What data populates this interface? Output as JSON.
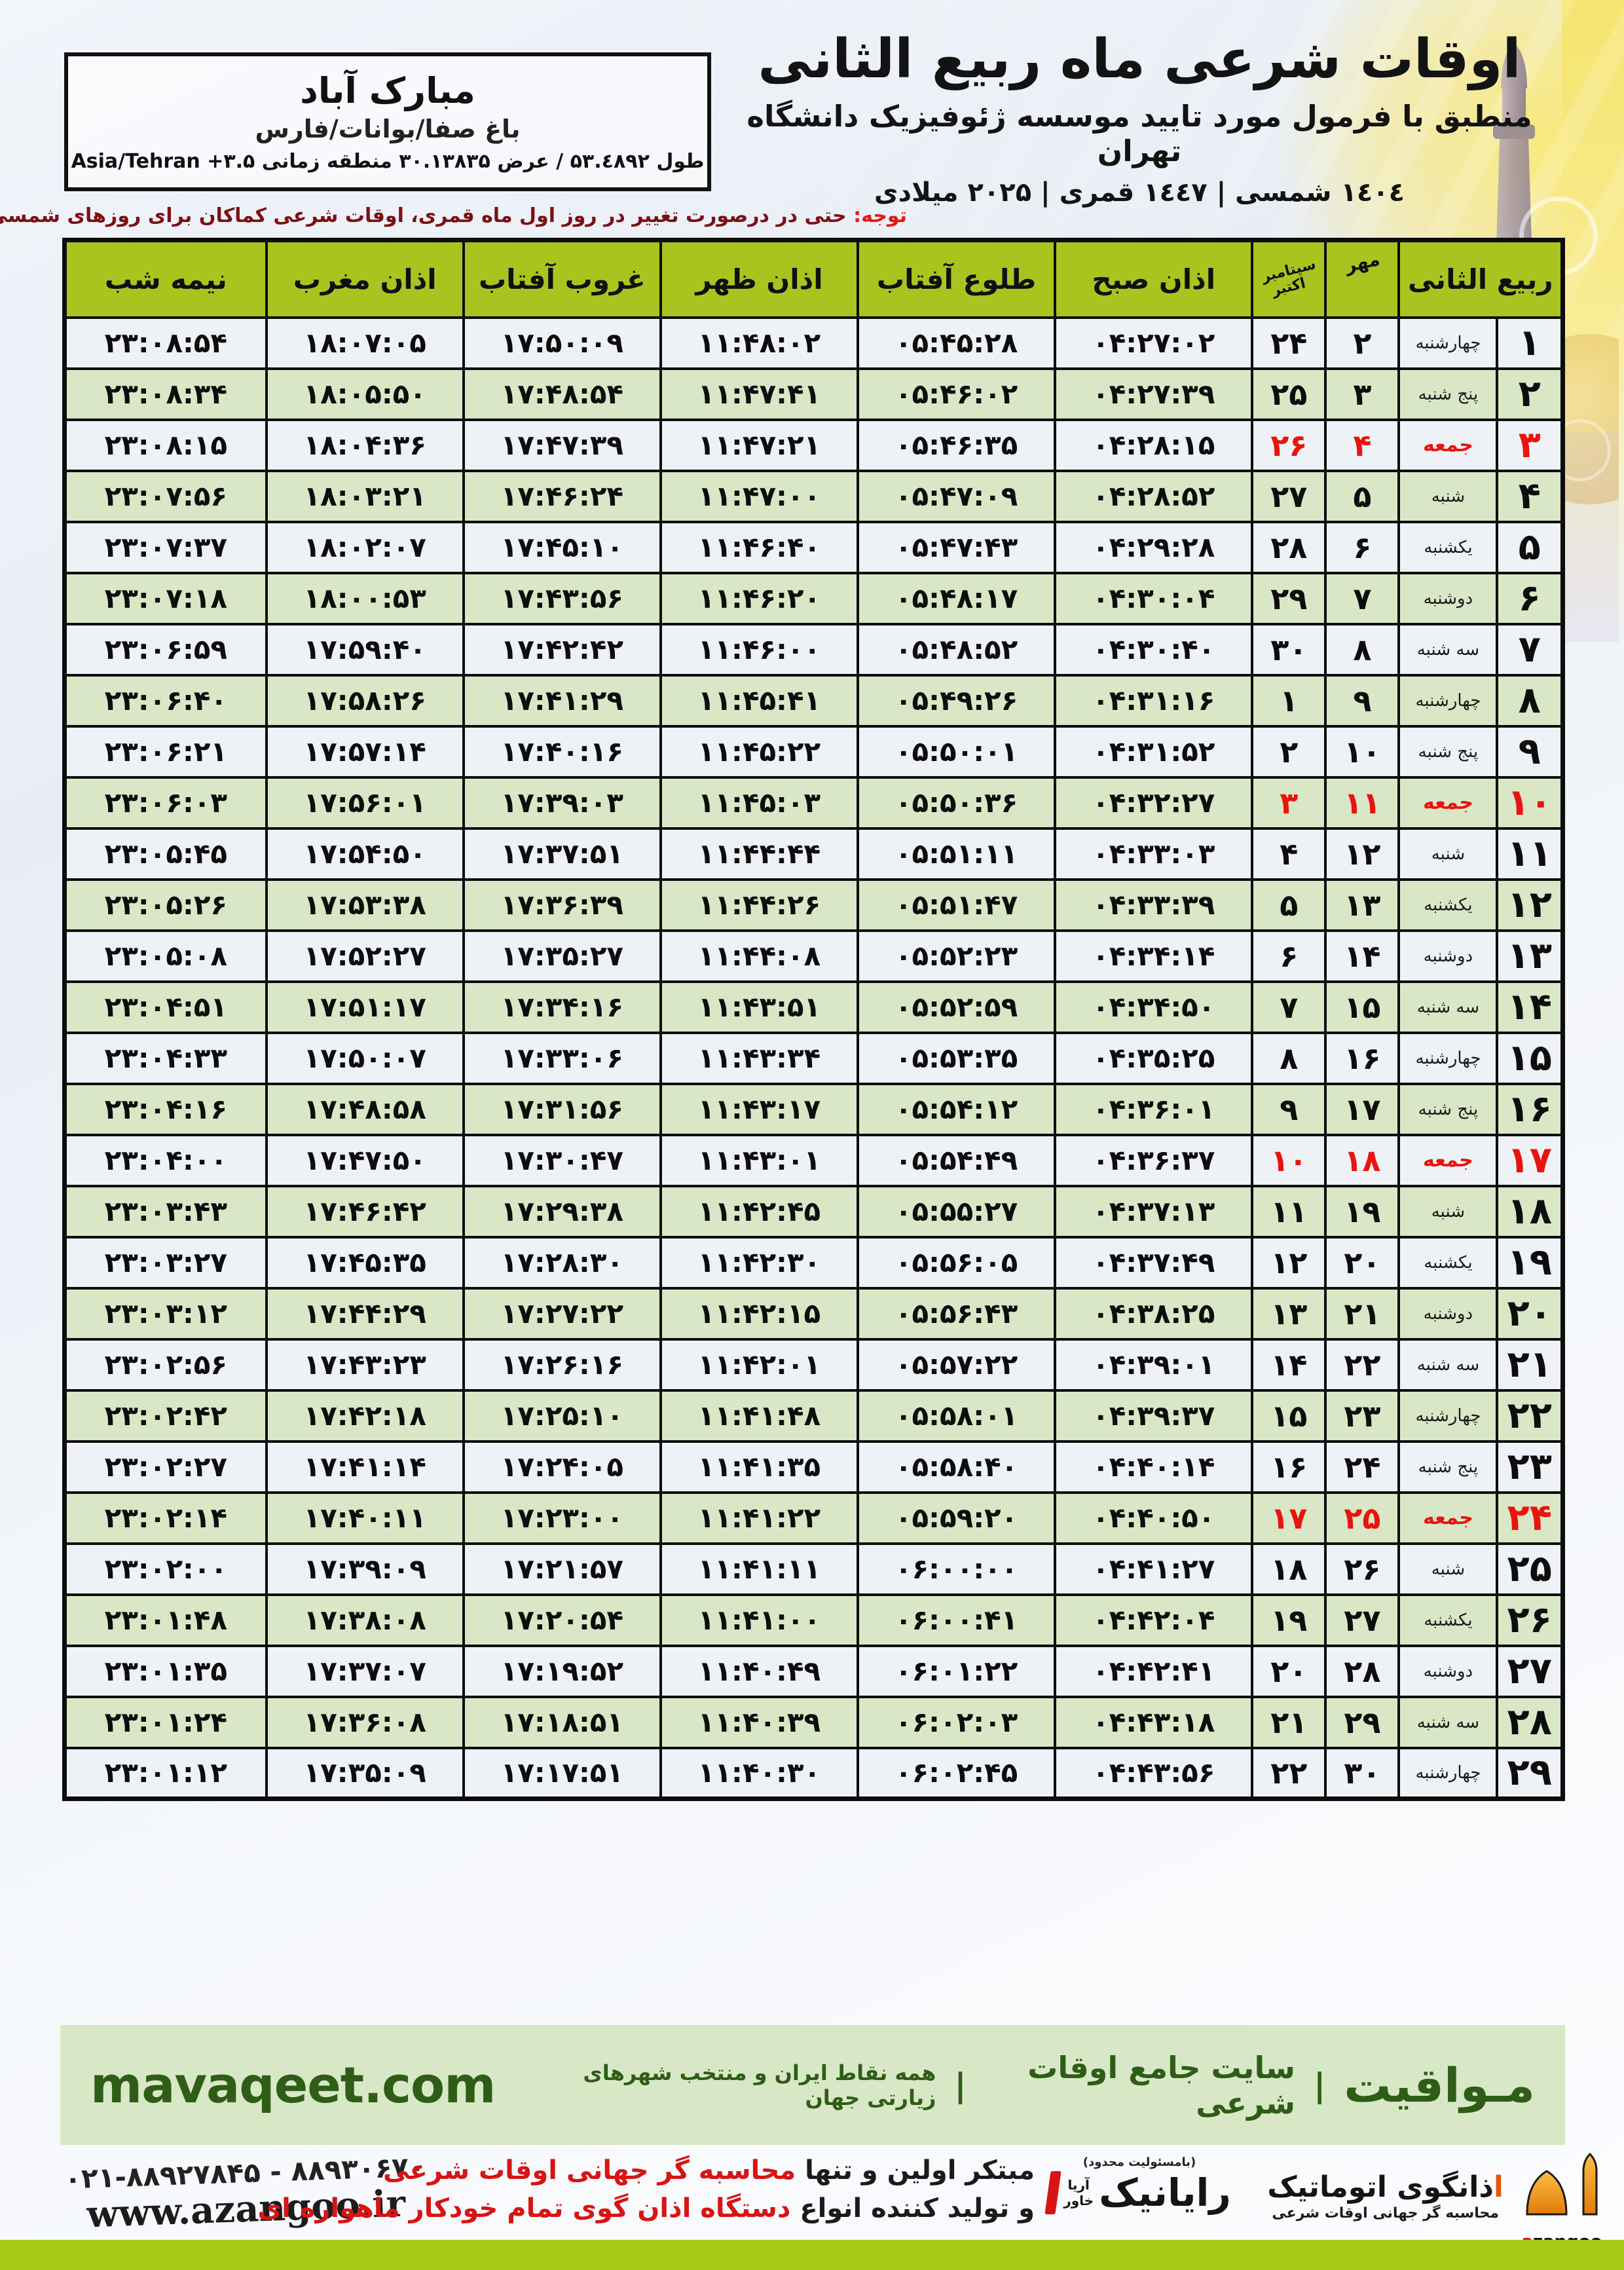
{
  "meta": {
    "title": "اوقات شرعی ماه ربیع الثانی",
    "subtitle": "منطبق با فرمول مورد تایید موسسه ژئوفیزیک دانشگاه تهران",
    "years_line": "١٤٠٤ شمسی | ١٤٤٧ قمری | ۲۰۲۵ میلادی"
  },
  "location": {
    "name": "مبارک آباد",
    "region": "باغ صفا/بوانات/فارس",
    "coords_line": "طول ۵۳.٤۸۹۲ / عرض ۳۰.۱۳۸۳۵ منطقه زمانی ۳.۵+ Asia/Tehran"
  },
  "notice": {
    "label": "توجه:",
    "text": " حتی در درصورت تغییر در روز اول ماه قمری، اوقات شرعی کماکان برای روزهای شمسی و میلادی معتبر است."
  },
  "table": {
    "headers": {
      "rabi": "ربیع الثانی",
      "mehr": "مهر",
      "greg_top": "سپتامبر",
      "greg_bottom": "اکتبر",
      "fajr": "اذان صبح",
      "sunrise": "طلوع آفتاب",
      "dhuhr": "اذان ظهر",
      "sunset": "غروب آفتاب",
      "maghrib": "اذان مغرب",
      "midnight": "نیمه شب"
    },
    "rows": [
      {
        "day": "۱",
        "weekday": "چهارشنبه",
        "mehr": "۲",
        "greg": "۲۴",
        "fajr": "۰۴:۲۷:۰۲",
        "sunrise": "۰۵:۴۵:۲۸",
        "dhuhr": "۱۱:۴۸:۰۲",
        "sunset": "۱۷:۵۰:۰۹",
        "maghrib": "۱۸:۰۷:۰۵",
        "midnight": "۲۳:۰۸:۵۴",
        "friday": false
      },
      {
        "day": "۲",
        "weekday": "پنج شنبه",
        "mehr": "۳",
        "greg": "۲۵",
        "fajr": "۰۴:۲۷:۳۹",
        "sunrise": "۰۵:۴۶:۰۲",
        "dhuhr": "۱۱:۴۷:۴۱",
        "sunset": "۱۷:۴۸:۵۴",
        "maghrib": "۱۸:۰۵:۵۰",
        "midnight": "۲۳:۰۸:۳۴",
        "friday": false
      },
      {
        "day": "۳",
        "weekday": "جمعه",
        "mehr": "۴",
        "greg": "۲۶",
        "fajr": "۰۴:۲۸:۱۵",
        "sunrise": "۰۵:۴۶:۳۵",
        "dhuhr": "۱۱:۴۷:۲۱",
        "sunset": "۱۷:۴۷:۳۹",
        "maghrib": "۱۸:۰۴:۳۶",
        "midnight": "۲۳:۰۸:۱۵",
        "friday": true
      },
      {
        "day": "۴",
        "weekday": "شنبه",
        "mehr": "۵",
        "greg": "۲۷",
        "fajr": "۰۴:۲۸:۵۲",
        "sunrise": "۰۵:۴۷:۰۹",
        "dhuhr": "۱۱:۴۷:۰۰",
        "sunset": "۱۷:۴۶:۲۴",
        "maghrib": "۱۸:۰۳:۲۱",
        "midnight": "۲۳:۰۷:۵۶",
        "friday": false
      },
      {
        "day": "۵",
        "weekday": "یکشنبه",
        "mehr": "۶",
        "greg": "۲۸",
        "fajr": "۰۴:۲۹:۲۸",
        "sunrise": "۰۵:۴۷:۴۳",
        "dhuhr": "۱۱:۴۶:۴۰",
        "sunset": "۱۷:۴۵:۱۰",
        "maghrib": "۱۸:۰۲:۰۷",
        "midnight": "۲۳:۰۷:۳۷",
        "friday": false
      },
      {
        "day": "۶",
        "weekday": "دوشنبه",
        "mehr": "۷",
        "greg": "۲۹",
        "fajr": "۰۴:۳۰:۰۴",
        "sunrise": "۰۵:۴۸:۱۷",
        "dhuhr": "۱۱:۴۶:۲۰",
        "sunset": "۱۷:۴۳:۵۶",
        "maghrib": "۱۸:۰۰:۵۳",
        "midnight": "۲۳:۰۷:۱۸",
        "friday": false
      },
      {
        "day": "۷",
        "weekday": "سه شنبه",
        "mehr": "۸",
        "greg": "۳۰",
        "fajr": "۰۴:۳۰:۴۰",
        "sunrise": "۰۵:۴۸:۵۲",
        "dhuhr": "۱۱:۴۶:۰۰",
        "sunset": "۱۷:۴۲:۴۲",
        "maghrib": "۱۷:۵۹:۴۰",
        "midnight": "۲۳:۰۶:۵۹",
        "friday": false
      },
      {
        "day": "۸",
        "weekday": "چهارشنبه",
        "mehr": "۹",
        "greg": "۱",
        "fajr": "۰۴:۳۱:۱۶",
        "sunrise": "۰۵:۴۹:۲۶",
        "dhuhr": "۱۱:۴۵:۴۱",
        "sunset": "۱۷:۴۱:۲۹",
        "maghrib": "۱۷:۵۸:۲۶",
        "midnight": "۲۳:۰۶:۴۰",
        "friday": false
      },
      {
        "day": "۹",
        "weekday": "پنج شنبه",
        "mehr": "۱۰",
        "greg": "۲",
        "fajr": "۰۴:۳۱:۵۲",
        "sunrise": "۰۵:۵۰:۰۱",
        "dhuhr": "۱۱:۴۵:۲۲",
        "sunset": "۱۷:۴۰:۱۶",
        "maghrib": "۱۷:۵۷:۱۴",
        "midnight": "۲۳:۰۶:۲۱",
        "friday": false
      },
      {
        "day": "۱۰",
        "weekday": "جمعه",
        "mehr": "۱۱",
        "greg": "۳",
        "fajr": "۰۴:۳۲:۲۷",
        "sunrise": "۰۵:۵۰:۳۶",
        "dhuhr": "۱۱:۴۵:۰۳",
        "sunset": "۱۷:۳۹:۰۳",
        "maghrib": "۱۷:۵۶:۰۱",
        "midnight": "۲۳:۰۶:۰۳",
        "friday": true
      },
      {
        "day": "۱۱",
        "weekday": "شنبه",
        "mehr": "۱۲",
        "greg": "۴",
        "fajr": "۰۴:۳۳:۰۳",
        "sunrise": "۰۵:۵۱:۱۱",
        "dhuhr": "۱۱:۴۴:۴۴",
        "sunset": "۱۷:۳۷:۵۱",
        "maghrib": "۱۷:۵۴:۵۰",
        "midnight": "۲۳:۰۵:۴۵",
        "friday": false
      },
      {
        "day": "۱۲",
        "weekday": "یکشنبه",
        "mehr": "۱۳",
        "greg": "۵",
        "fajr": "۰۴:۳۳:۳۹",
        "sunrise": "۰۵:۵۱:۴۷",
        "dhuhr": "۱۱:۴۴:۲۶",
        "sunset": "۱۷:۳۶:۳۹",
        "maghrib": "۱۷:۵۳:۳۸",
        "midnight": "۲۳:۰۵:۲۶",
        "friday": false
      },
      {
        "day": "۱۳",
        "weekday": "دوشنبه",
        "mehr": "۱۴",
        "greg": "۶",
        "fajr": "۰۴:۳۴:۱۴",
        "sunrise": "۰۵:۵۲:۲۳",
        "dhuhr": "۱۱:۴۴:۰۸",
        "sunset": "۱۷:۳۵:۲۷",
        "maghrib": "۱۷:۵۲:۲۷",
        "midnight": "۲۳:۰۵:۰۸",
        "friday": false
      },
      {
        "day": "۱۴",
        "weekday": "سه شنبه",
        "mehr": "۱۵",
        "greg": "۷",
        "fajr": "۰۴:۳۴:۵۰",
        "sunrise": "۰۵:۵۲:۵۹",
        "dhuhr": "۱۱:۴۳:۵۱",
        "sunset": "۱۷:۳۴:۱۶",
        "maghrib": "۱۷:۵۱:۱۷",
        "midnight": "۲۳:۰۴:۵۱",
        "friday": false
      },
      {
        "day": "۱۵",
        "weekday": "چهارشنبه",
        "mehr": "۱۶",
        "greg": "۸",
        "fajr": "۰۴:۳۵:۲۵",
        "sunrise": "۰۵:۵۳:۳۵",
        "dhuhr": "۱۱:۴۳:۳۴",
        "sunset": "۱۷:۳۳:۰۶",
        "maghrib": "۱۷:۵۰:۰۷",
        "midnight": "۲۳:۰۴:۳۳",
        "friday": false
      },
      {
        "day": "۱۶",
        "weekday": "پنج شنبه",
        "mehr": "۱۷",
        "greg": "۹",
        "fajr": "۰۴:۳۶:۰۱",
        "sunrise": "۰۵:۵۴:۱۲",
        "dhuhr": "۱۱:۴۳:۱۷",
        "sunset": "۱۷:۳۱:۵۶",
        "maghrib": "۱۷:۴۸:۵۸",
        "midnight": "۲۳:۰۴:۱۶",
        "friday": false
      },
      {
        "day": "۱۷",
        "weekday": "جمعه",
        "mehr": "۱۸",
        "greg": "۱۰",
        "fajr": "۰۴:۳۶:۳۷",
        "sunrise": "۰۵:۵۴:۴۹",
        "dhuhr": "۱۱:۴۳:۰۱",
        "sunset": "۱۷:۳۰:۴۷",
        "maghrib": "۱۷:۴۷:۵۰",
        "midnight": "۲۳:۰۴:۰۰",
        "friday": true
      },
      {
        "day": "۱۸",
        "weekday": "شنبه",
        "mehr": "۱۹",
        "greg": "۱۱",
        "fajr": "۰۴:۳۷:۱۳",
        "sunrise": "۰۵:۵۵:۲۷",
        "dhuhr": "۱۱:۴۲:۴۵",
        "sunset": "۱۷:۲۹:۳۸",
        "maghrib": "۱۷:۴۶:۴۲",
        "midnight": "۲۳:۰۳:۴۳",
        "friday": false
      },
      {
        "day": "۱۹",
        "weekday": "یکشنبه",
        "mehr": "۲۰",
        "greg": "۱۲",
        "fajr": "۰۴:۳۷:۴۹",
        "sunrise": "۰۵:۵۶:۰۵",
        "dhuhr": "۱۱:۴۲:۳۰",
        "sunset": "۱۷:۲۸:۳۰",
        "maghrib": "۱۷:۴۵:۳۵",
        "midnight": "۲۳:۰۳:۲۷",
        "friday": false
      },
      {
        "day": "۲۰",
        "weekday": "دوشنبه",
        "mehr": "۲۱",
        "greg": "۱۳",
        "fajr": "۰۴:۳۸:۲۵",
        "sunrise": "۰۵:۵۶:۴۳",
        "dhuhr": "۱۱:۴۲:۱۵",
        "sunset": "۱۷:۲۷:۲۲",
        "maghrib": "۱۷:۴۴:۲۹",
        "midnight": "۲۳:۰۳:۱۲",
        "friday": false
      },
      {
        "day": "۲۱",
        "weekday": "سه شنبه",
        "mehr": "۲۲",
        "greg": "۱۴",
        "fajr": "۰۴:۳۹:۰۱",
        "sunrise": "۰۵:۵۷:۲۲",
        "dhuhr": "۱۱:۴۲:۰۱",
        "sunset": "۱۷:۲۶:۱۶",
        "maghrib": "۱۷:۴۳:۲۳",
        "midnight": "۲۳:۰۲:۵۶",
        "friday": false
      },
      {
        "day": "۲۲",
        "weekday": "چهارشنبه",
        "mehr": "۲۳",
        "greg": "۱۵",
        "fajr": "۰۴:۳۹:۳۷",
        "sunrise": "۰۵:۵۸:۰۱",
        "dhuhr": "۱۱:۴۱:۴۸",
        "sunset": "۱۷:۲۵:۱۰",
        "maghrib": "۱۷:۴۲:۱۸",
        "midnight": "۲۳:۰۲:۴۲",
        "friday": false
      },
      {
        "day": "۲۳",
        "weekday": "پنج شنبه",
        "mehr": "۲۴",
        "greg": "۱۶",
        "fajr": "۰۴:۴۰:۱۴",
        "sunrise": "۰۵:۵۸:۴۰",
        "dhuhr": "۱۱:۴۱:۳۵",
        "sunset": "۱۷:۲۴:۰۵",
        "maghrib": "۱۷:۴۱:۱۴",
        "midnight": "۲۳:۰۲:۲۷",
        "friday": false
      },
      {
        "day": "۲۴",
        "weekday": "جمعه",
        "mehr": "۲۵",
        "greg": "۱۷",
        "fajr": "۰۴:۴۰:۵۰",
        "sunrise": "۰۵:۵۹:۲۰",
        "dhuhr": "۱۱:۴۱:۲۲",
        "sunset": "۱۷:۲۳:۰۰",
        "maghrib": "۱۷:۴۰:۱۱",
        "midnight": "۲۳:۰۲:۱۴",
        "friday": true
      },
      {
        "day": "۲۵",
        "weekday": "شنبه",
        "mehr": "۲۶",
        "greg": "۱۸",
        "fajr": "۰۴:۴۱:۲۷",
        "sunrise": "۰۶:۰۰:۰۰",
        "dhuhr": "۱۱:۴۱:۱۱",
        "sunset": "۱۷:۲۱:۵۷",
        "maghrib": "۱۷:۳۹:۰۹",
        "midnight": "۲۳:۰۲:۰۰",
        "friday": false
      },
      {
        "day": "۲۶",
        "weekday": "یکشنبه",
        "mehr": "۲۷",
        "greg": "۱۹",
        "fajr": "۰۴:۴۲:۰۴",
        "sunrise": "۰۶:۰۰:۴۱",
        "dhuhr": "۱۱:۴۱:۰۰",
        "sunset": "۱۷:۲۰:۵۴",
        "maghrib": "۱۷:۳۸:۰۸",
        "midnight": "۲۳:۰۱:۴۸",
        "friday": false
      },
      {
        "day": "۲۷",
        "weekday": "دوشنبه",
        "mehr": "۲۸",
        "greg": "۲۰",
        "fajr": "۰۴:۴۲:۴۱",
        "sunrise": "۰۶:۰۱:۲۲",
        "dhuhr": "۱۱:۴۰:۴۹",
        "sunset": "۱۷:۱۹:۵۲",
        "maghrib": "۱۷:۳۷:۰۷",
        "midnight": "۲۳:۰۱:۳۵",
        "friday": false
      },
      {
        "day": "۲۸",
        "weekday": "سه شنبه",
        "mehr": "۲۹",
        "greg": "۲۱",
        "fajr": "۰۴:۴۳:۱۸",
        "sunrise": "۰۶:۰۲:۰۳",
        "dhuhr": "۱۱:۴۰:۳۹",
        "sunset": "۱۷:۱۸:۵۱",
        "maghrib": "۱۷:۳۶:۰۸",
        "midnight": "۲۳:۰۱:۲۴",
        "friday": false
      },
      {
        "day": "۲۹",
        "weekday": "چهارشنبه",
        "mehr": "۳۰",
        "greg": "۲۲",
        "fajr": "۰۴:۴۳:۵۶",
        "sunrise": "۰۶:۰۲:۴۵",
        "dhuhr": "۱۱:۴۰:۳۰",
        "sunset": "۱۷:۱۷:۵۱",
        "maghrib": "۱۷:۳۵:۰۹",
        "midnight": "۲۳:۰۱:۱۲",
        "friday": false
      }
    ]
  },
  "band": {
    "brand": "مـواقیت",
    "separator": "|",
    "tagline": "سایت جامع اوقات شرعی",
    "scope": "همه نقاط ایران و منتخب شهرهای زیارتی جهان",
    "site": "mavaqeet.com"
  },
  "footer": {
    "phones": "۰۲۱-۸۸۹۲۷۸۴۵ - ۸۸۹۳۰۶۷۰",
    "website": "www.azangoo.ir",
    "line1_black": "مبتکر اولین و تنها ",
    "line1_red": "محاسبه گر جهانی اوقات شرعی",
    "line2_black": "و تولید کننده انواع ",
    "line2_red": "دستگاه اذان گوی تمام خودکار ماهواره ای",
    "rayanik_note": "(بامسئولیت محدود)",
    "rayanik_name": "رایانیک",
    "rayanik_side_top": "آریا",
    "rayanik_side_bottom": "خاور",
    "azangoo_alef": "ا",
    "azangoo_brand": "ذانگوی اتوماتیک",
    "azangoo_sub": "محاسبه گر جهانی اوقات شرعی",
    "azangoo_latin_a": "a",
    "azangoo_latin_rest": "zangoo"
  },
  "colors": {
    "header_green": "#a9c41f",
    "row_green": "#d9e7c6",
    "row_light": "#eef2f6",
    "friday_red": "#ea130e",
    "band_green": "#d8e8c6",
    "brand_dark_green": "#2f5d17",
    "bottom_bar_green": "#a5c916",
    "accent_orange": "#ef8f1c"
  }
}
